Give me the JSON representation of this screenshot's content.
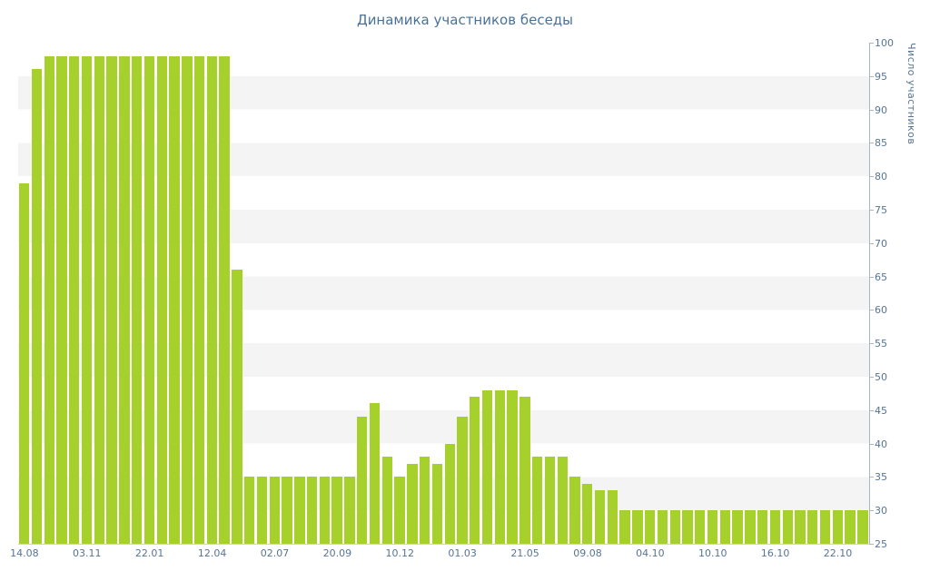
{
  "chart_data": {
    "type": "bar",
    "title": "Динамика участников беседы",
    "ylabel": "Число участников",
    "xlabel": "",
    "ylim": [
      25,
      100
    ],
    "y_tick_step": 5,
    "y_tick_labels": [
      "100",
      "95",
      "90",
      "85",
      "80",
      "75",
      "70",
      "65",
      "60",
      "55",
      "50",
      "45",
      "40",
      "35",
      "30",
      "25"
    ],
    "x_tick_labels": [
      "14.08",
      "03.11",
      "22.01",
      "12.04",
      "02.07",
      "20.09",
      "10.12",
      "01.03",
      "21.05",
      "09.08",
      "04.10",
      "10.10",
      "16.10",
      "22.10"
    ],
    "x_tick_every": 5,
    "legend": "none",
    "grid": "alternating horizontal bands, 5-unit stripes",
    "values": [
      79,
      96,
      98,
      98,
      98,
      98,
      98,
      98,
      98,
      98,
      98,
      98,
      98,
      98,
      98,
      98,
      98,
      66,
      35,
      35,
      35,
      35,
      35,
      35,
      35,
      35,
      35,
      44,
      46,
      38,
      35,
      37,
      38,
      37,
      40,
      44,
      47,
      48,
      48,
      48,
      47,
      38,
      38,
      38,
      35,
      34,
      33,
      33,
      30,
      30,
      30,
      30,
      30,
      30,
      30,
      30,
      30,
      30,
      30,
      30,
      30,
      30,
      30,
      30,
      30,
      30,
      30,
      30
    ],
    "colors": {
      "bar": "#a6d02b",
      "title": "#4a7299",
      "tick": "#567596",
      "stripe": "#f4f4f4",
      "background": "#ffffff",
      "y_axis": "#a9b5c2",
      "x_axis": "#ccd4dc"
    }
  }
}
